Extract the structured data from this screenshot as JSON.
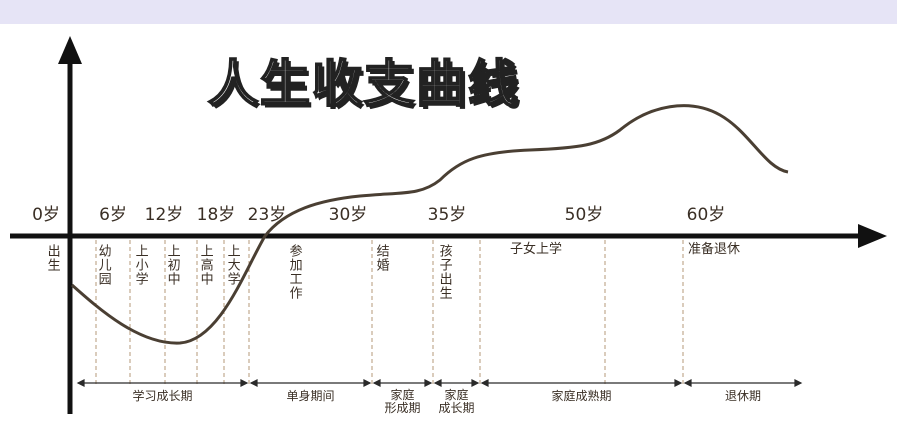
{
  "title": "人生收支曲线",
  "ages": [
    "0岁",
    "6岁",
    "12岁",
    "18岁",
    "23岁",
    "30岁",
    "35岁",
    "50岁",
    "60岁"
  ],
  "events": [
    "出生",
    "幼儿园",
    "上小学",
    "上初中",
    "上高中",
    "上大学",
    "参加工作",
    "结婚",
    "孩子出生"
  ],
  "events_horizontal": [
    "子女上学",
    "准备退休"
  ],
  "periods": [
    {
      "lines": [
        "学习成长期"
      ]
    },
    {
      "lines": [
        "单身期间"
      ]
    },
    {
      "lines": [
        "家庭",
        "形成期"
      ]
    },
    {
      "lines": [
        "家庭",
        "成长期"
      ]
    },
    {
      "lines": [
        "家庭成熟期"
      ]
    },
    {
      "lines": [
        "退休期"
      ]
    }
  ]
}
